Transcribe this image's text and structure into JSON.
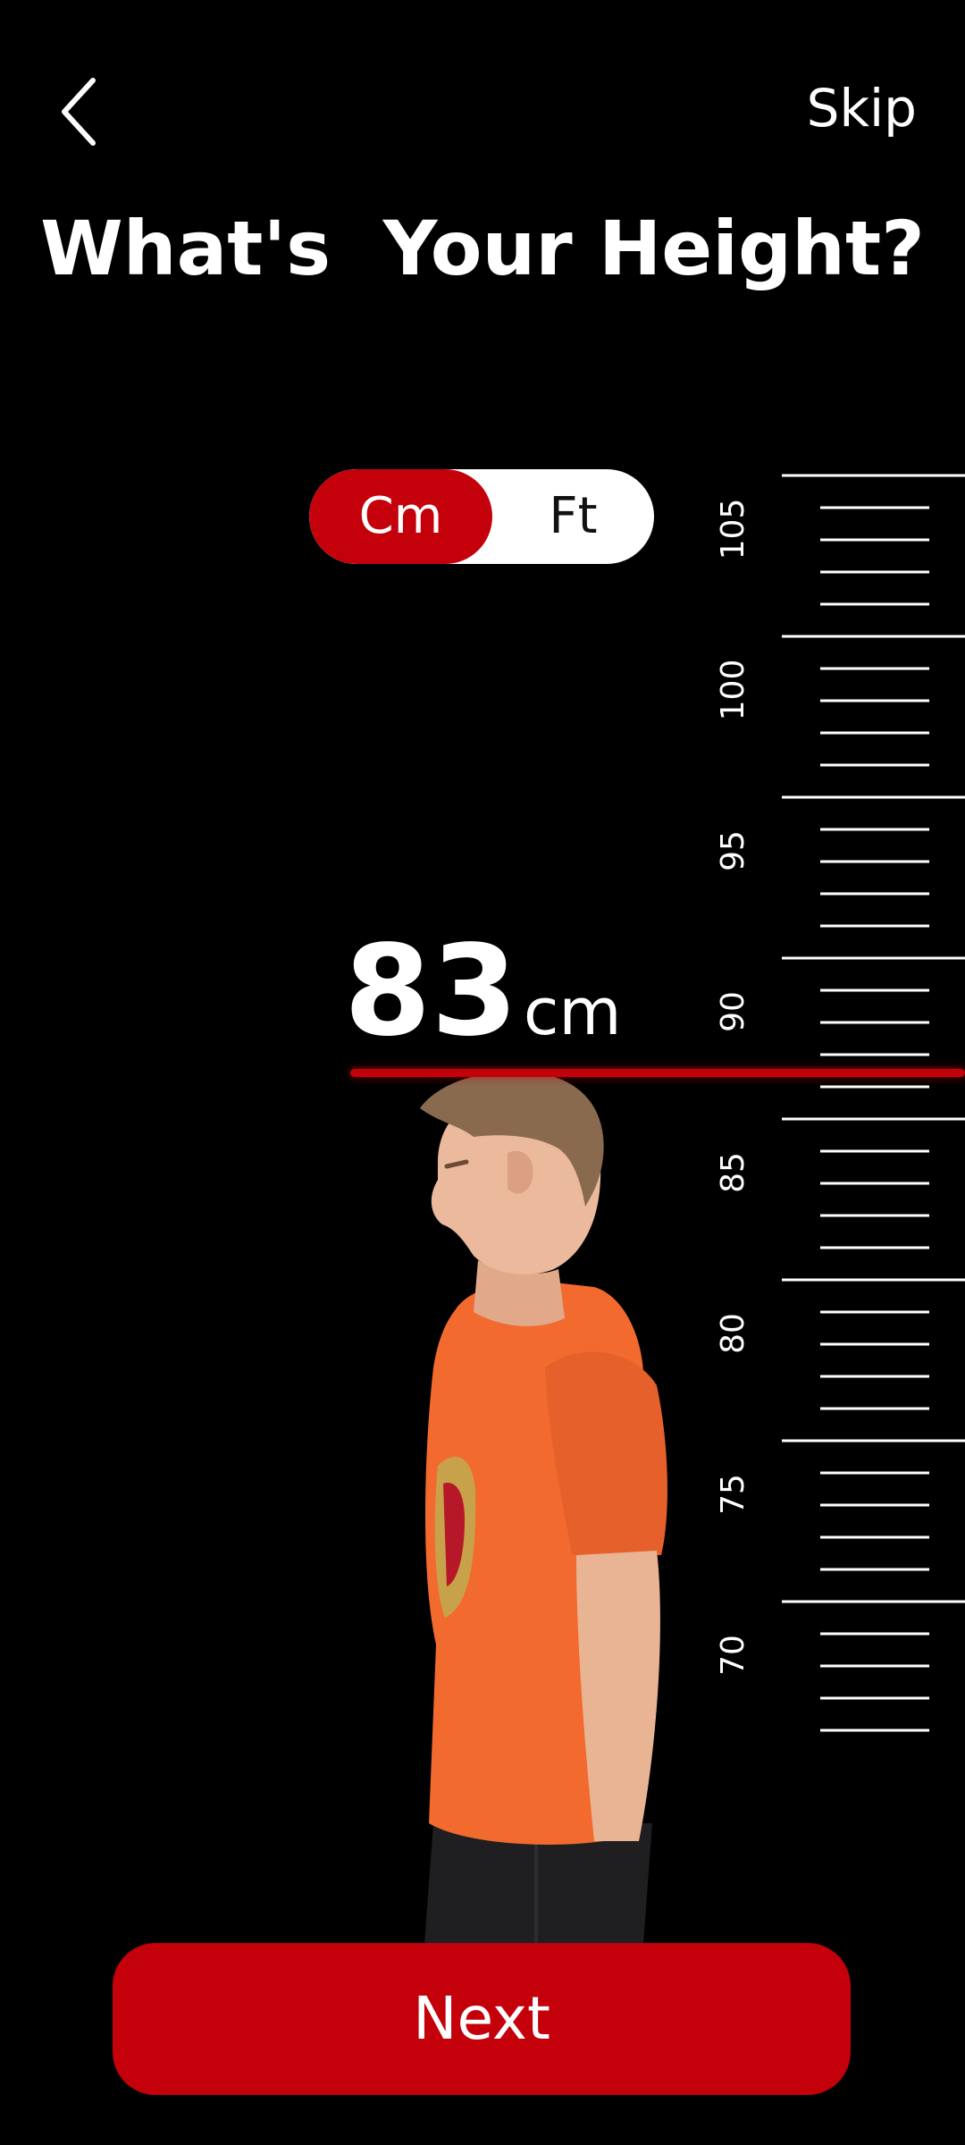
{
  "header": {
    "back_icon": "chevron-left-icon",
    "skip_label": "Skip",
    "title": "What's  Your Height?"
  },
  "unit_toggle": {
    "options": [
      "Cm",
      "Ft"
    ],
    "selected": "Cm"
  },
  "height": {
    "value": "83",
    "unit": "cm"
  },
  "ruler": {
    "labels": [
      "105",
      "100",
      "95",
      "90",
      "85",
      "80",
      "75",
      "70"
    ]
  },
  "next_button": {
    "label": "Next"
  },
  "colors": {
    "accent": "#c4000b",
    "background": "#000000",
    "text": "#ffffff",
    "shirt": "#f26a2e"
  }
}
